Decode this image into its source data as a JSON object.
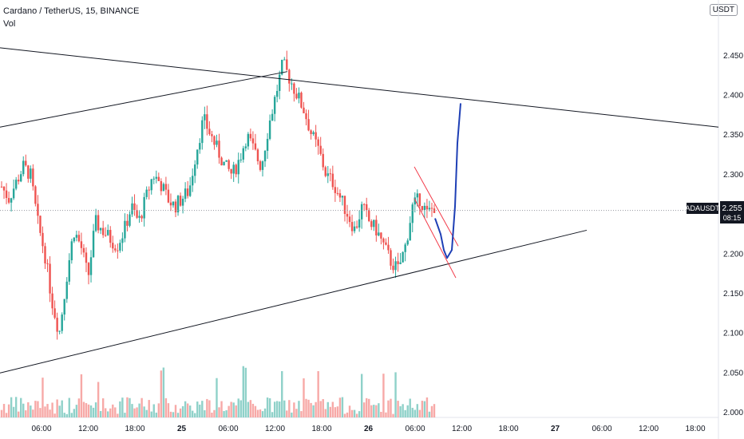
{
  "header": {
    "title": "Cardano / TetherUS, 15, BINANCE",
    "volume_label": "Vol"
  },
  "price_axis": {
    "unit": "USDT"
  },
  "last_price": {
    "symbol": "ADAUSDT",
    "price": "2.255",
    "countdown": "08:15"
  },
  "colors": {
    "up": "#26a69a",
    "down": "#ef5350",
    "up_vol": "#8fd1c9",
    "down_vol": "#f7a9a7",
    "trendline": "#131722",
    "projection": "#1e3fb5",
    "channel": "#f23645",
    "price_line": "#9598a1"
  },
  "chart_data": {
    "type": "candlestick",
    "title": "Cardano / TetherUS, 15, BINANCE",
    "y_ticks": [
      "2.450",
      "2.400",
      "2.350",
      "2.300",
      "2.250",
      "2.200",
      "2.150",
      "2.100",
      "2.050",
      "2.000"
    ],
    "x_ticks": [
      "06:00",
      "12:00",
      "18:00",
      "25",
      "06:00",
      "12:00",
      "18:00",
      "26",
      "06:00",
      "12:00",
      "18:00",
      "27",
      "06:00",
      "12:00",
      "18:00"
    ],
    "ylim": [
      2.0,
      2.48
    ],
    "price_anchors": [
      [
        0,
        2.285
      ],
      [
        1,
        2.27
      ],
      [
        2,
        2.29
      ],
      [
        3,
        2.31
      ],
      [
        4,
        2.3
      ],
      [
        5,
        2.24
      ],
      [
        6,
        2.2
      ],
      [
        7,
        2.14
      ],
      [
        8,
        2.1
      ],
      [
        9,
        2.17
      ],
      [
        10,
        2.23
      ],
      [
        11,
        2.21
      ],
      [
        12,
        2.17
      ],
      [
        13,
        2.24
      ],
      [
        14,
        2.23
      ],
      [
        15,
        2.22
      ],
      [
        16,
        2.21
      ],
      [
        17,
        2.23
      ],
      [
        18,
        2.26
      ],
      [
        19,
        2.24
      ],
      [
        20,
        2.27
      ],
      [
        21,
        2.3
      ],
      [
        22,
        2.29
      ],
      [
        23,
        2.27
      ],
      [
        24,
        2.26
      ],
      [
        25,
        2.27
      ],
      [
        26,
        2.28
      ],
      [
        27,
        2.33
      ],
      [
        28,
        2.37
      ],
      [
        29,
        2.35
      ],
      [
        30,
        2.33
      ],
      [
        31,
        2.31
      ],
      [
        32,
        2.3
      ],
      [
        33,
        2.32
      ],
      [
        34,
        2.35
      ],
      [
        35,
        2.33
      ],
      [
        36,
        2.31
      ],
      [
        37,
        2.36
      ],
      [
        38,
        2.4
      ],
      [
        39,
        2.44
      ],
      [
        40,
        2.42
      ],
      [
        41,
        2.4
      ],
      [
        42,
        2.38
      ],
      [
        43,
        2.35
      ],
      [
        44,
        2.33
      ],
      [
        45,
        2.3
      ],
      [
        46,
        2.29
      ],
      [
        47,
        2.27
      ],
      [
        48,
        2.25
      ],
      [
        49,
        2.23
      ],
      [
        50,
        2.26
      ],
      [
        51,
        2.24
      ],
      [
        52,
        2.23
      ],
      [
        53,
        2.21
      ],
      [
        54,
        2.19
      ],
      [
        55,
        2.18
      ],
      [
        56,
        2.21
      ],
      [
        57,
        2.26
      ],
      [
        58,
        2.27
      ],
      [
        59,
        2.25
      ],
      [
        60,
        2.26
      ]
    ],
    "trendlines": [
      {
        "name": "upper-descending",
        "x1": 0,
        "y1": 2.46,
        "x2": 1,
        "y2": 2.36
      },
      {
        "name": "lower-ascending",
        "x1": 0,
        "y1": 2.05,
        "x2": 1,
        "y2": 2.23
      },
      {
        "name": "old-ascending",
        "x1": 0,
        "y1": 2.36,
        "x2": 0.62,
        "y2": 2.43
      }
    ],
    "projection": "down-to-2.19-then-up-to-2.39",
    "grid": false,
    "legend": "none"
  }
}
